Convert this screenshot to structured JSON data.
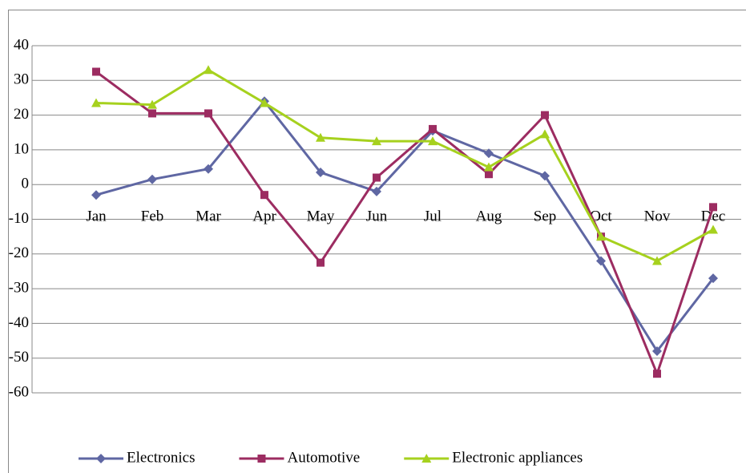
{
  "chart_data": {
    "type": "line",
    "categories": [
      "Jan",
      "Feb",
      "Mar",
      "Apr",
      "May",
      "Jun",
      "Jul",
      "Aug",
      "Sep",
      "Oct",
      "Nov",
      "Dec"
    ],
    "series": [
      {
        "name": "Electronics",
        "color": "#5f67a3",
        "marker": "diamond",
        "values": [
          -3,
          1.5,
          4.5,
          24,
          3.5,
          -2,
          15.5,
          9,
          2.5,
          -22,
          -48,
          -27
        ]
      },
      {
        "name": "Automotive",
        "color": "#9c2c61",
        "marker": "square",
        "values": [
          32.5,
          20.5,
          20.5,
          -3,
          -22.5,
          2,
          16,
          3,
          20,
          -15,
          -54.5,
          -6.5
        ]
      },
      {
        "name": "Electronic appliances",
        "color": "#a6d11e",
        "marker": "triangle",
        "values": [
          23.5,
          23,
          33,
          23.5,
          13.5,
          12.5,
          12.5,
          5,
          14.5,
          -15,
          -22,
          -13
        ]
      }
    ],
    "ylim": [
      -60,
      40
    ],
    "yticks": [
      -60,
      -50,
      -40,
      -30,
      -20,
      -10,
      0,
      10,
      20,
      30,
      40
    ],
    "grid": true,
    "legend": "bottom"
  }
}
